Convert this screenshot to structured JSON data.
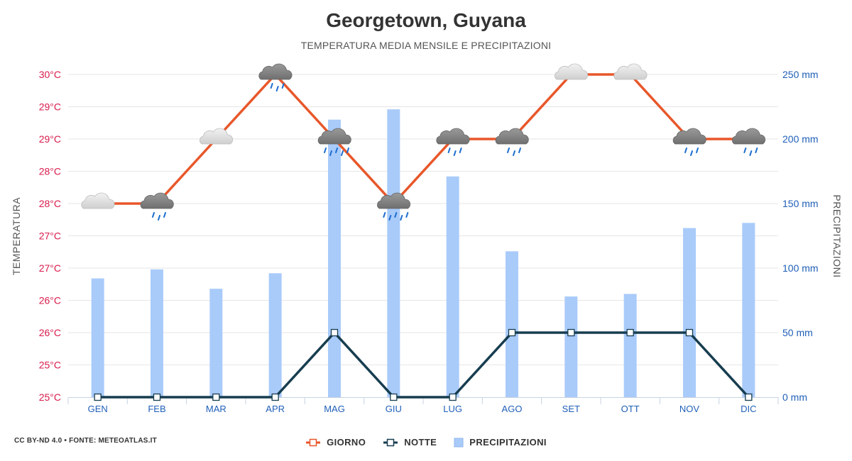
{
  "title": "Georgetown, Guyana",
  "subtitle": "TEMPERATURA MEDIA MENSILE E PRECIPITAZIONI",
  "credit": "CC BY-ND 4.0 • FONTE: METEOATLAS.IT",
  "colors": {
    "day": "#e8572a",
    "night": "#173d4f",
    "precip": "#a9cbfa",
    "temp_axis": "#d81b4b",
    "precip_axis": "#1f5fb8",
    "month_label": "#1f5fb8"
  },
  "chart_data": {
    "type": "line",
    "categories": [
      "GEN",
      "FEB",
      "MAR",
      "APR",
      "MAG",
      "GIU",
      "LUG",
      "AGO",
      "SET",
      "OTT",
      "NOV",
      "DIC"
    ],
    "series": [
      {
        "name": "GIORNO",
        "axis": "left",
        "values": [
          28,
          28,
          29,
          30,
          29,
          28,
          29,
          29,
          30,
          30,
          29,
          29
        ]
      },
      {
        "name": "NOTTE",
        "axis": "left",
        "values": [
          25,
          25,
          25,
          25,
          26,
          25,
          25,
          26,
          26,
          26,
          26,
          25
        ]
      },
      {
        "name": "PRECIPITAZIONI",
        "axis": "right",
        "type": "bar",
        "values": [
          92,
          99,
          84,
          96,
          215,
          223,
          171,
          113,
          78,
          80,
          131,
          135
        ]
      }
    ],
    "weather_icons": [
      "cloudy",
      "cloudy-rain",
      "cloudy",
      "cloudy-rain",
      "cloudy-rain-heavy",
      "cloudy-rain-heavy",
      "cloudy-rain",
      "cloudy-rain",
      "cloudy",
      "cloudy",
      "cloudy-rain",
      "cloudy-rain"
    ],
    "ylabel_left": "TEMPERATURA",
    "ylabel_right": "PRECIPITAZIONI",
    "y_left_ticks": [
      "25°C",
      "25°C",
      "26°C",
      "26°C",
      "27°C",
      "27°C",
      "28°C",
      "28°C",
      "29°C",
      "29°C",
      "30°C"
    ],
    "y_left_range": [
      25,
      30
    ],
    "y_right_ticks": [
      "0 mm",
      "50 mm",
      "100 mm",
      "150 mm",
      "200 mm",
      "250 mm"
    ],
    "y_right_range": [
      0,
      250
    ],
    "grid": true,
    "legend_position": "bottom"
  }
}
